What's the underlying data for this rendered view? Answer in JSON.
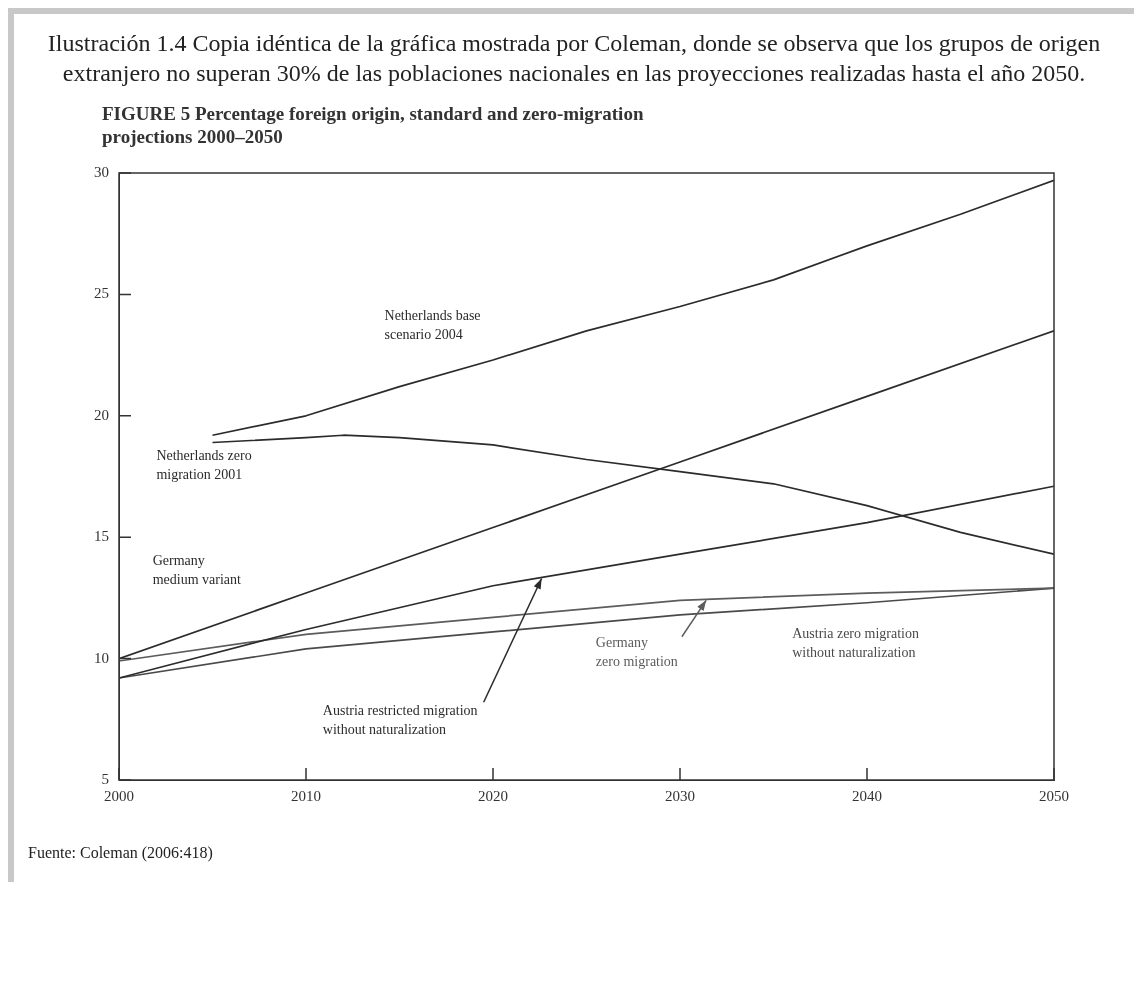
{
  "chart_data": {
    "type": "line",
    "title": "Ilustración 1.4 Copia idéntica de la gráfica mostrada por Coleman, donde se observa que los grupos de origen extranjero no superan 30% de las poblaciones nacionales en las proyecciones realizadas hasta el año 2050.",
    "subtitle": "FIGURE 5   Percentage foreign origin, standard and zero-migration projections 2000–2050",
    "annotations": [
      "Fuente: Coleman (2006:418)"
    ],
    "xlim": [
      2000,
      2050
    ],
    "xticks": [
      2000,
      2010,
      2020,
      2030,
      2040,
      2050
    ],
    "ylim": [
      5,
      30
    ],
    "yticks": [
      5,
      10,
      15,
      20,
      25,
      30
    ],
    "series": [
      {
        "name": "Netherlands base scenario 2004",
        "color": "#2b2b2b",
        "x": [
          2005,
          2010,
          2015,
          2020,
          2025,
          2030,
          2035,
          2040,
          2045,
          2050
        ],
        "values": [
          19.2,
          20.0,
          21.2,
          22.3,
          23.5,
          24.5,
          25.6,
          27.0,
          28.3,
          29.7
        ]
      },
      {
        "name": "Netherlands zero migration 2001",
        "color": "#2b2b2b",
        "x": [
          2005,
          2010,
          2012,
          2015,
          2020,
          2025,
          2030,
          2035,
          2040,
          2045,
          2050
        ],
        "values": [
          18.9,
          19.1,
          19.2,
          19.1,
          18.8,
          18.2,
          17.7,
          17.2,
          16.3,
          15.2,
          14.3
        ]
      },
      {
        "name": "Germany medium variant",
        "color": "#2b2b2b",
        "x": [
          2000,
          2010,
          2020,
          2030,
          2040,
          2050
        ],
        "values": [
          10.0,
          12.7,
          15.4,
          18.1,
          20.8,
          23.5
        ]
      },
      {
        "name": "Austria restricted migration without naturalization",
        "color": "#2b2b2b",
        "x": [
          2000,
          2010,
          2020,
          2030,
          2040,
          2050
        ],
        "values": [
          9.2,
          11.2,
          13.0,
          14.3,
          15.6,
          17.1
        ]
      },
      {
        "name": "Germany zero migration",
        "color": "#5c5c5c",
        "x": [
          2000,
          2010,
          2020,
          2030,
          2040,
          2050
        ],
        "values": [
          9.9,
          11.0,
          11.7,
          12.4,
          12.7,
          12.9
        ]
      },
      {
        "name": "Austria zero migration without naturalization",
        "color": "#4a4a4a",
        "x": [
          2000,
          2010,
          2020,
          2030,
          2040,
          2050
        ],
        "values": [
          9.2,
          10.4,
          11.1,
          11.8,
          12.3,
          12.9
        ]
      }
    ]
  }
}
